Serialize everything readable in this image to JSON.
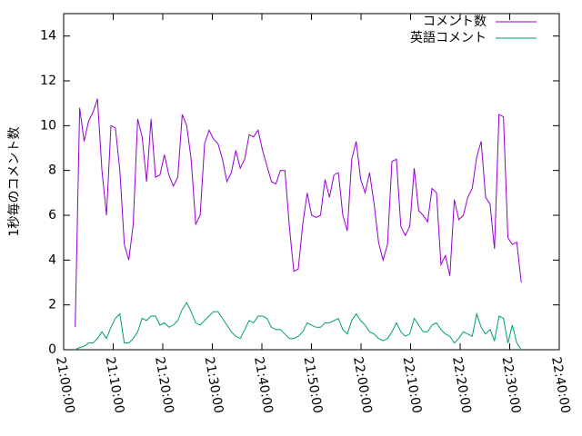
{
  "chart_data": {
    "type": "line",
    "ylabel": "1秒毎のコメント数",
    "x": [
      "21:02:20",
      "21:03:14",
      "21:04:08",
      "21:05:02",
      "21:05:56",
      "21:06:50",
      "21:07:44",
      "21:08:38",
      "21:09:32",
      "21:10:26",
      "21:11:20",
      "21:12:14",
      "21:13:08",
      "21:14:02",
      "21:14:56",
      "21:15:50",
      "21:16:44",
      "21:17:38",
      "21:18:32",
      "21:19:26",
      "21:20:20",
      "21:21:14",
      "21:22:08",
      "21:23:02",
      "21:23:56",
      "21:24:50",
      "21:25:44",
      "21:26:38",
      "21:27:32",
      "21:28:26",
      "21:29:20",
      "21:30:14",
      "21:31:08",
      "21:32:02",
      "21:32:56",
      "21:33:50",
      "21:34:44",
      "21:35:38",
      "21:36:32",
      "21:37:26",
      "21:38:20",
      "21:39:14",
      "21:40:08",
      "21:41:02",
      "21:41:56",
      "21:42:50",
      "21:43:44",
      "21:44:38",
      "21:45:32",
      "21:46:26",
      "21:47:20",
      "21:48:14",
      "21:49:08",
      "21:50:02",
      "21:50:56",
      "21:51:50",
      "21:52:44",
      "21:53:38",
      "21:54:32",
      "21:55:26",
      "21:56:20",
      "21:57:14",
      "21:58:08",
      "21:59:02",
      "21:59:56",
      "22:00:50",
      "22:01:44",
      "22:02:38",
      "22:03:32",
      "22:04:26",
      "22:05:20",
      "22:06:14",
      "22:07:08",
      "22:08:02",
      "22:08:56",
      "22:09:50",
      "22:10:44",
      "22:11:38",
      "22:12:32",
      "22:13:26",
      "22:14:20",
      "22:15:14",
      "22:16:08",
      "22:17:02",
      "22:17:56",
      "22:18:50",
      "22:19:44",
      "22:20:38",
      "22:21:32",
      "22:22:26",
      "22:23:20",
      "22:24:14",
      "22:25:08",
      "22:26:02",
      "22:26:56",
      "22:27:50",
      "22:28:44",
      "22:29:38",
      "22:30:32",
      "22:31:26",
      "22:32:20"
    ],
    "series": [
      {
        "name": "コメント数",
        "color": "#9400d3",
        "values": [
          1,
          10.8,
          9.3,
          10.2,
          10.6,
          11.2,
          8,
          6,
          10,
          9.9,
          8,
          4.7,
          4,
          5.6,
          10.3,
          9.5,
          7.5,
          10.3,
          7.7,
          7.8,
          8.7,
          7.8,
          7.3,
          7.7,
          10.5,
          10,
          8.5,
          5.6,
          6,
          9.2,
          9.8,
          9.4,
          9.2,
          8.5,
          7.5,
          7.9,
          8.9,
          8.1,
          8.5,
          9.6,
          9.5,
          9.8,
          8.9,
          8.2,
          7.5,
          7.4,
          8,
          8,
          5.5,
          3.5,
          3.6,
          5.6,
          7,
          6,
          5.9,
          6,
          7.6,
          6.8,
          7.8,
          7.9,
          6,
          5.3,
          8.5,
          9.3,
          7.6,
          7,
          7.9,
          6.5,
          4.8,
          4,
          4.7,
          8.4,
          8.5,
          5.5,
          5.1,
          5.5,
          8.1,
          6.2,
          6,
          5.7,
          7.2,
          7,
          3.8,
          4.2,
          3.3,
          6.7,
          5.8,
          6,
          6.8,
          7.2,
          8.6,
          9.3,
          6.8,
          6.5,
          4.5,
          10.5,
          10.4,
          5,
          4.7,
          4.8,
          3
        ]
      },
      {
        "name": "英語コメント",
        "color": "#009e73",
        "values": [
          0,
          0.1,
          0.15,
          0.3,
          0.3,
          0.5,
          0.8,
          0.5,
          1,
          1.4,
          1.6,
          0.3,
          0.3,
          0.5,
          0.8,
          1.4,
          1.3,
          1.5,
          1.5,
          1.1,
          1.2,
          1,
          1.1,
          1.3,
          1.8,
          2.1,
          1.7,
          1.2,
          1.1,
          1.3,
          1.5,
          1.7,
          1.7,
          1.4,
          1.1,
          0.8,
          0.6,
          0.5,
          0.9,
          1.3,
          1.2,
          1.5,
          1.5,
          1.4,
          1,
          0.9,
          0.9,
          0.7,
          0.5,
          0.5,
          0.6,
          0.8,
          1.2,
          1.1,
          1,
          1,
          1.2,
          1.2,
          1.3,
          1.4,
          0.9,
          0.7,
          1.3,
          1.6,
          1.3,
          1.1,
          0.8,
          0.7,
          0.5,
          0.4,
          0.5,
          0.8,
          1.2,
          0.8,
          0.6,
          0.7,
          1.4,
          1.1,
          0.8,
          0.8,
          1.1,
          1.2,
          0.9,
          0.7,
          0.6,
          0.3,
          0.5,
          0.8,
          0.7,
          0.6,
          1.6,
          1,
          0.7,
          0.9,
          0.4,
          1.5,
          1.4,
          0.3,
          1.1,
          0.3,
          0
        ]
      }
    ],
    "xlim": [
      "21:00:00",
      "22:40:00"
    ],
    "xticks": [
      "21:00:00",
      "21:10:00",
      "21:20:00",
      "21:30:00",
      "21:40:00",
      "21:50:00",
      "22:00:00",
      "22:10:00",
      "22:20:00",
      "22:30:00",
      "22:40:00"
    ],
    "ylim": [
      0,
      15
    ],
    "yticks": [
      0,
      2,
      4,
      6,
      8,
      10,
      12,
      14
    ],
    "legend": "top right"
  }
}
